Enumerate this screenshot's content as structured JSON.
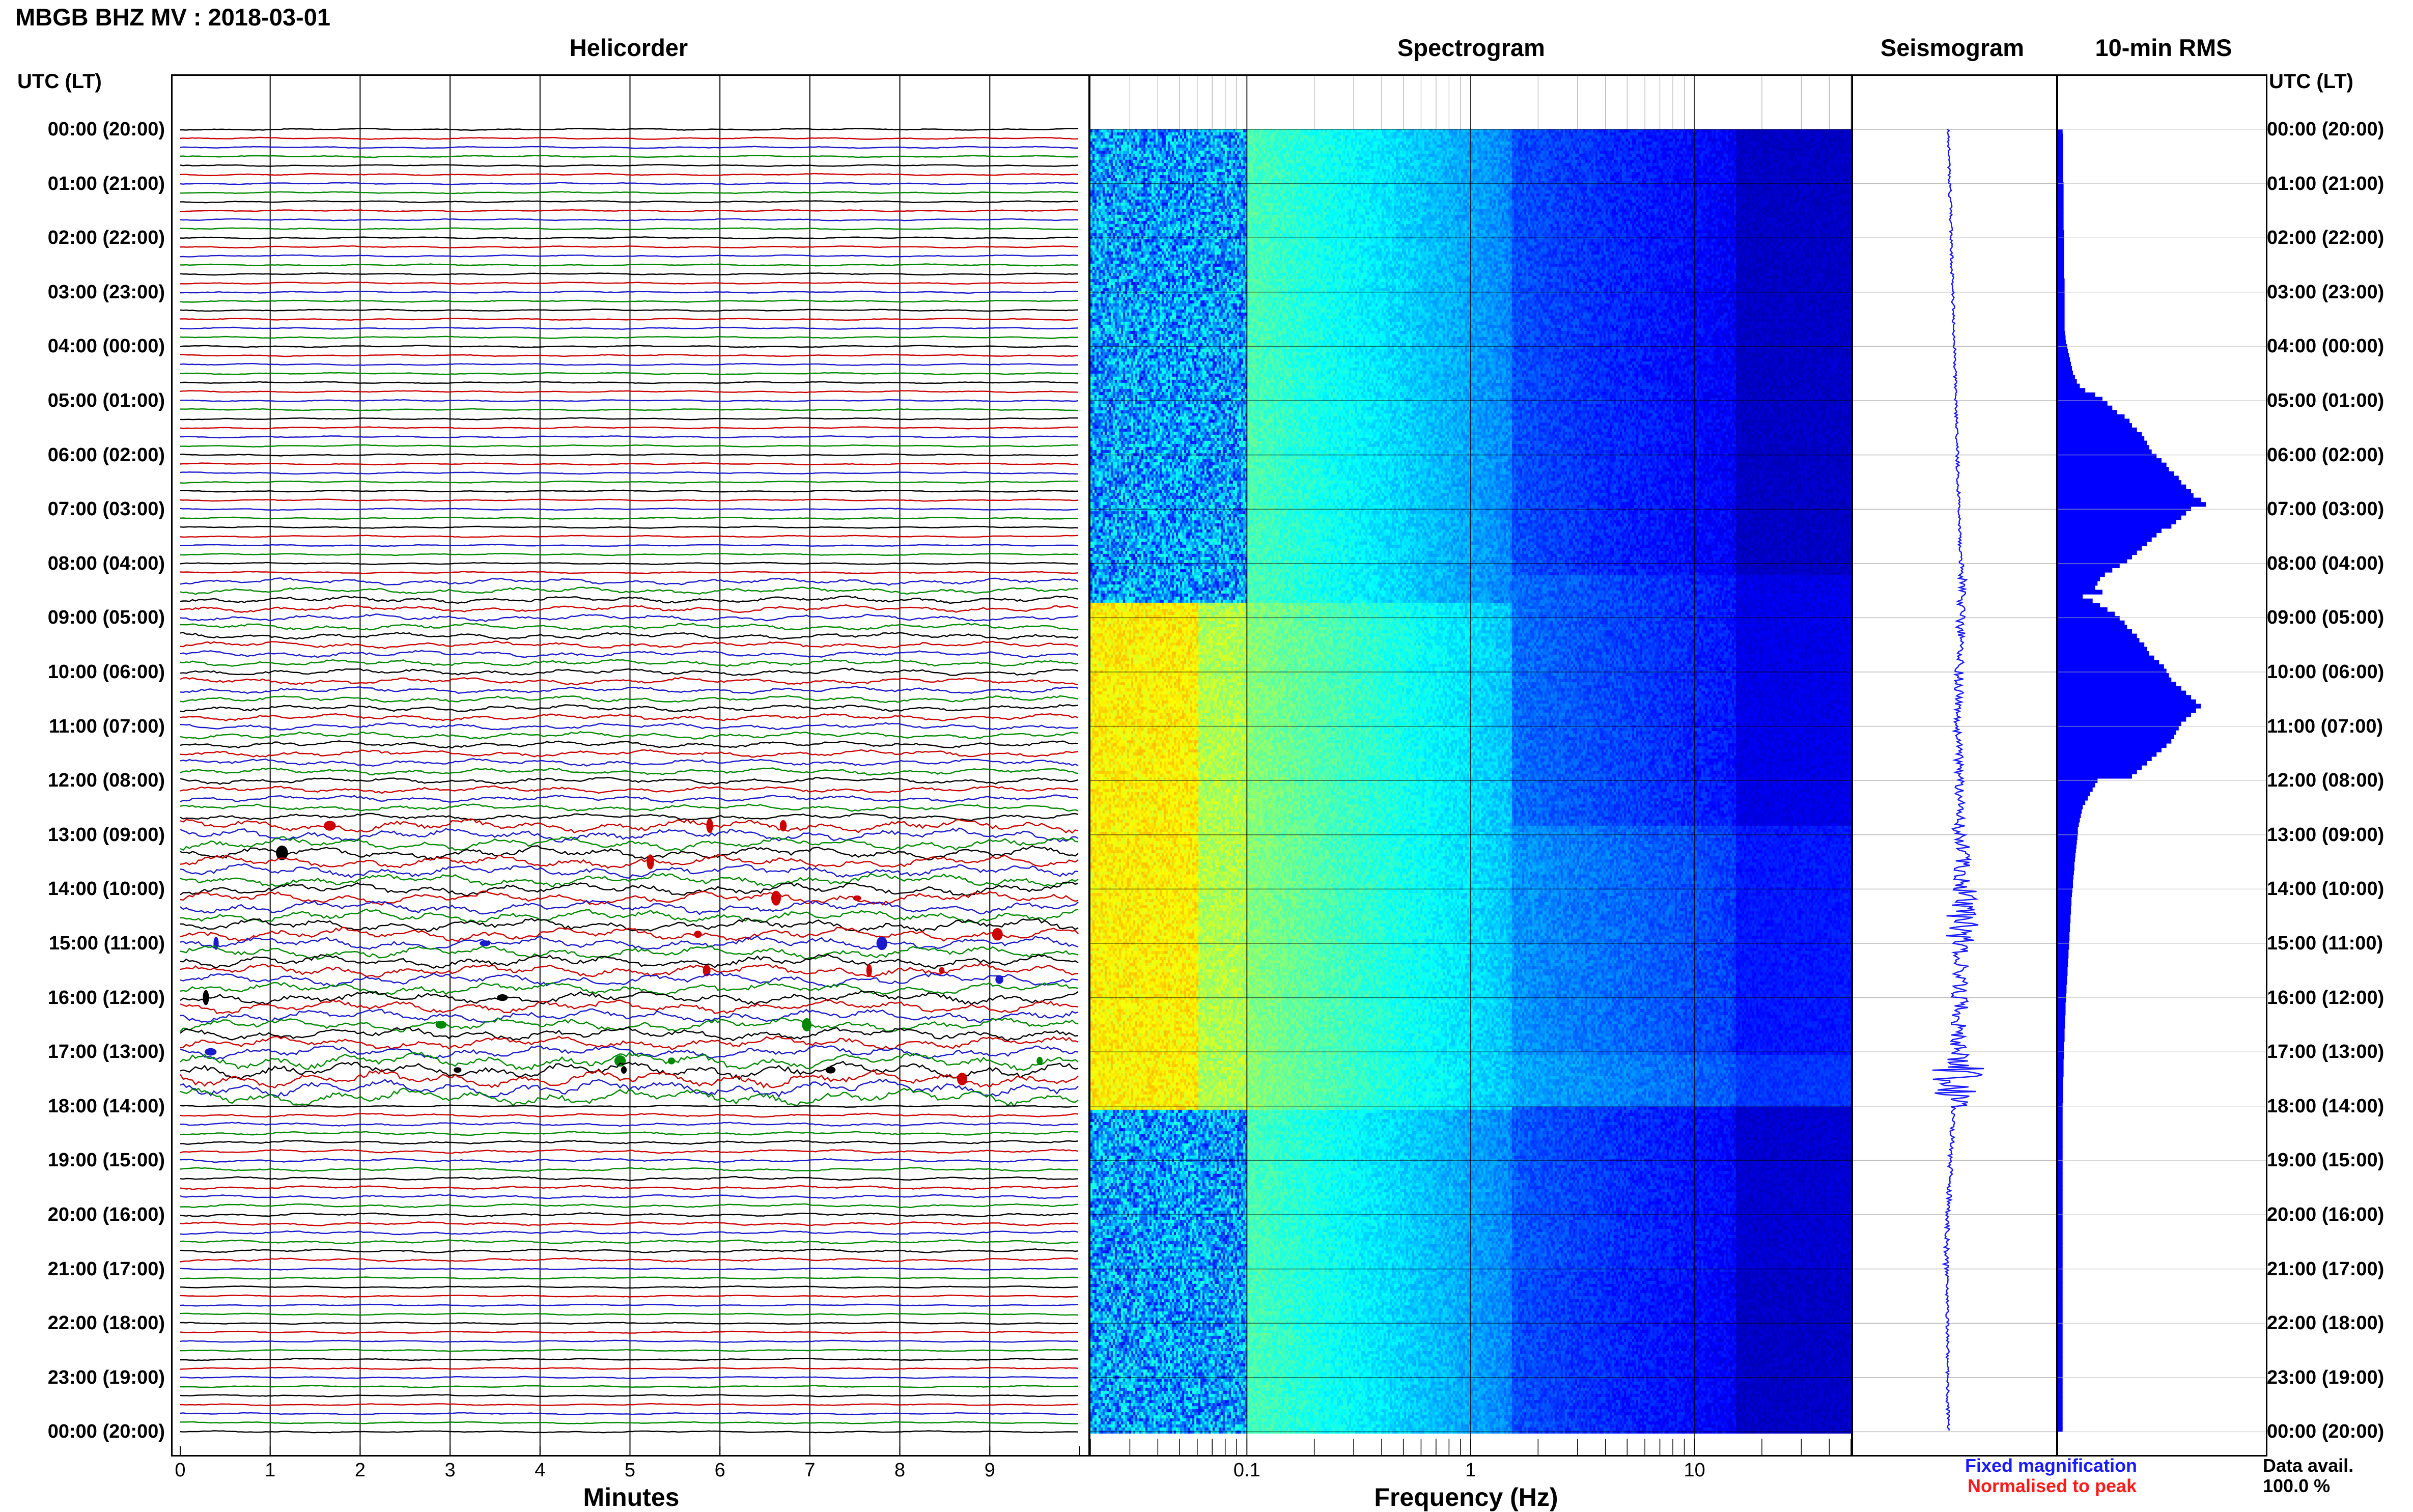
{
  "header": {
    "title": "MBGB BHZ MV : 2018-03-01"
  },
  "panels": {
    "helicorder": "Helicorder",
    "spectrogram": "Spectrogram",
    "seismogram": "Seismogram",
    "rms": "10-min RMS"
  },
  "time_axis": {
    "heading": "UTC (LT)",
    "labels": [
      "00:00 (20:00)",
      "01:00 (21:00)",
      "02:00 (22:00)",
      "03:00 (23:00)",
      "04:00 (00:00)",
      "05:00 (01:00)",
      "06:00 (02:00)",
      "07:00 (03:00)",
      "08:00 (04:00)",
      "09:00 (05:00)",
      "10:00 (06:00)",
      "11:00 (07:00)",
      "12:00 (08:00)",
      "13:00 (09:00)",
      "14:00 (10:00)",
      "15:00 (11:00)",
      "16:00 (12:00)",
      "17:00 (13:00)",
      "18:00 (14:00)",
      "19:00 (15:00)",
      "20:00 (16:00)",
      "21:00 (17:00)",
      "22:00 (18:00)",
      "23:00 (19:00)",
      "00:00 (20:00)"
    ]
  },
  "legend": {
    "fixed": "Fixed magnification",
    "normalised": "Normalised to peak",
    "avail_label": "Data avail.",
    "avail_value": "100.0 %",
    "fixed_color": "#1a1aff",
    "normalised_color": "#ff1a1a"
  },
  "chart_data": [
    {
      "type": "line",
      "panel": "Helicorder",
      "xlabel": "Minutes",
      "x_ticks": [
        "0",
        "1",
        "2",
        "3",
        "4",
        "5",
        "6",
        "7",
        "8",
        "9"
      ],
      "xlim": [
        0,
        10
      ],
      "trace_colors": [
        "#000000",
        "#cc0000",
        "#1a1acc",
        "#008800"
      ],
      "traces_per_hour": 6
    },
    {
      "type": "heatmap",
      "panel": "Spectrogram",
      "xlabel": "Frequency (Hz)",
      "x_scale": "log",
      "x_ticks": [
        "0.1",
        "1",
        "10"
      ],
      "xlim": [
        0.02,
        50
      ],
      "colormap": [
        "#00008f",
        "#0000ff",
        "#0080ff",
        "#00ffff",
        "#80ff80",
        "#ffff00",
        "#ff8000"
      ]
    },
    {
      "type": "line",
      "panel": "Seismogram",
      "color": "#1a1aff"
    },
    {
      "type": "bar",
      "panel": "10-min RMS",
      "orientation": "horizontal",
      "color": "#0000ff",
      "values": [
        9,
        10,
        10,
        10,
        10,
        10,
        10,
        10,
        10,
        10,
        10,
        10,
        11,
        11,
        11,
        11,
        11,
        11,
        11,
        11,
        11,
        11,
        11,
        12,
        12,
        12,
        12,
        12,
        12,
        12,
        12,
        12,
        12,
        12,
        13,
        13,
        13,
        13,
        13,
        13,
        13,
        13,
        13,
        13,
        13,
        13,
        14,
        15,
        16,
        18,
        20,
        22,
        24,
        26,
        28,
        30,
        34,
        38,
        44,
        55,
        75,
        90,
        100,
        110,
        120,
        135,
        145,
        150,
        160,
        170,
        175,
        180,
        185,
        190,
        200,
        210,
        220,
        225,
        235,
        245,
        250,
        260,
        270,
        275,
        290,
        300,
        270,
        260,
        250,
        240,
        230,
        210,
        200,
        190,
        180,
        170,
        160,
        150,
        140,
        125,
        110,
        95,
        85,
        80,
        75,
        90,
        50,
        70,
        85,
        100,
        115,
        125,
        135,
        140,
        150,
        160,
        165,
        175,
        180,
        185,
        195,
        205,
        215,
        220,
        225,
        230,
        240,
        250,
        260,
        270,
        280,
        290,
        280,
        270,
        260,
        250,
        245,
        240,
        235,
        230,
        220,
        210,
        200,
        190,
        180,
        170,
        160,
        150,
        80,
        75,
        70,
        65,
        60,
        55,
        50,
        48,
        46,
        44,
        42,
        40,
        40,
        39,
        38,
        37,
        36,
        35,
        34,
        33,
        33,
        32,
        31,
        30,
        30,
        29,
        28,
        27,
        27,
        26,
        26,
        25,
        25,
        24,
        24,
        23,
        23,
        22,
        22,
        21,
        21,
        20,
        20,
        19,
        19,
        18,
        18,
        17,
        17,
        16,
        16,
        15,
        15,
        15,
        14,
        14,
        14,
        13,
        13,
        13,
        12,
        12,
        12,
        12,
        11,
        11,
        11,
        11,
        10,
        10,
        10,
        10,
        10,
        10,
        9,
        9,
        9,
        9,
        9,
        9,
        9,
        9,
        9,
        9,
        9,
        9,
        9,
        9,
        9,
        9,
        9,
        9,
        9,
        9,
        9,
        9,
        9,
        9,
        9,
        9,
        9,
        9,
        9,
        9,
        9,
        9,
        9,
        9,
        9,
        9,
        9,
        9,
        9,
        9,
        9,
        9,
        9,
        9,
        9,
        9,
        9,
        9,
        9,
        9,
        9,
        9,
        9,
        9,
        9,
        9,
        9,
        9,
        9,
        9,
        9,
        9,
        9,
        9,
        9,
        9,
        9,
        9,
        9,
        9,
        9,
        9,
        9,
        9,
        9
      ]
    }
  ]
}
